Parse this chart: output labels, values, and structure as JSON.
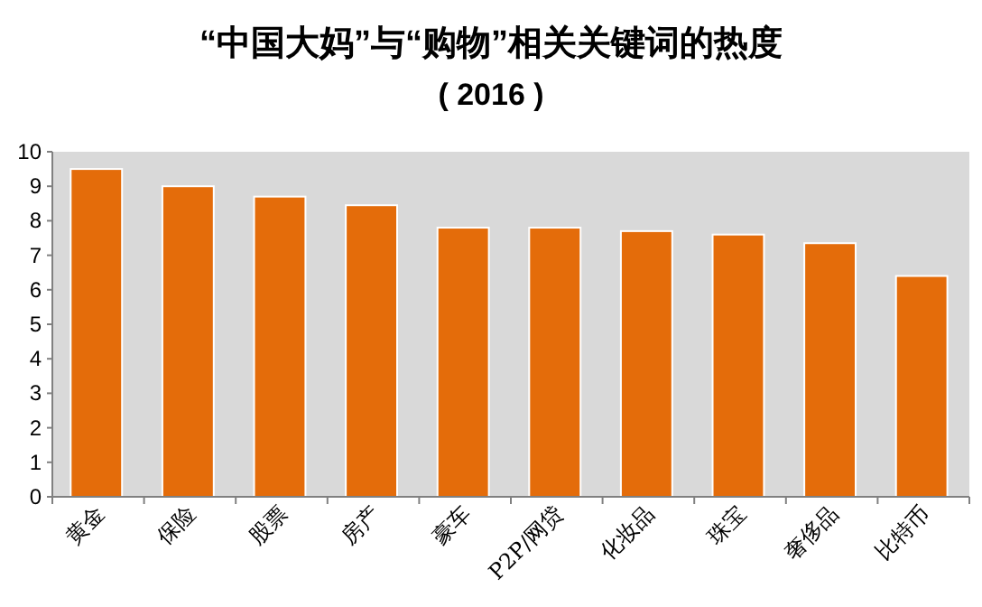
{
  "chart_data": {
    "type": "bar",
    "title": "“中国大妈”与“购物”相关关键词的热度",
    "subtitle": "( 2016 )",
    "categories": [
      "黄金",
      "保险",
      "股票",
      "房产",
      "豪车",
      "P2P/网贷",
      "化妆品",
      "珠宝",
      "奢侈品",
      "比特币"
    ],
    "values": [
      9.5,
      9.0,
      8.7,
      8.45,
      7.8,
      7.8,
      7.7,
      7.6,
      7.35,
      6.4
    ],
    "color": "#e46c0a",
    "ylim": [
      0,
      10
    ],
    "yticks": [
      0,
      1,
      2,
      3,
      4,
      5,
      6,
      7,
      8,
      9,
      10
    ],
    "grid": false
  }
}
